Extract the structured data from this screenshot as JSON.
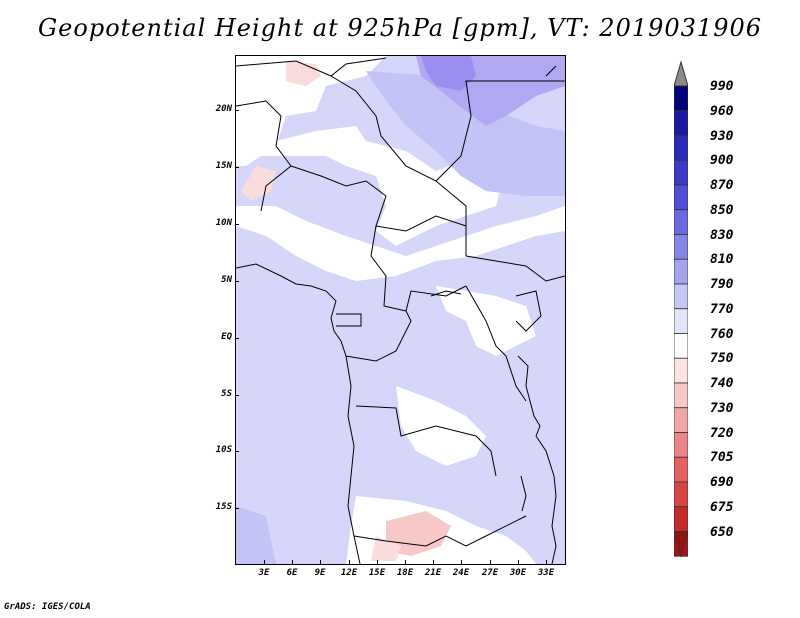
{
  "title": "Geopotential Height at 925hPa [gpm], VT: 2019031906",
  "footer": "GrADS: IGES/COLA",
  "map": {
    "lat_labels": [
      "20N",
      "15N",
      "10N",
      "5N",
      "EQ",
      "5S",
      "10S",
      "15S"
    ],
    "lon_labels": [
      "3E",
      "6E",
      "9E",
      "12E",
      "15E",
      "18E",
      "21E",
      "24E",
      "27E",
      "30E",
      "33E"
    ],
    "colors": {
      "background_770_790": "#d6d6fa",
      "white_760_770": "#ffffff",
      "light_pink_750_760": "#fadcdc",
      "pink_740_750": "#f7c8c8",
      "lavender_790_810": "#c3c3f5",
      "purple_810_830": "#b0a8f2",
      "purple_830_850": "#9a8ff0",
      "coast_borders": "#000000"
    }
  },
  "colorbar": {
    "levels": [
      "990",
      "960",
      "930",
      "900",
      "870",
      "850",
      "830",
      "810",
      "790",
      "770",
      "760",
      "750",
      "740",
      "730",
      "720",
      "705",
      "690",
      "675",
      "650"
    ],
    "colors": [
      "#00007a",
      "#1a1a9e",
      "#2a2ab8",
      "#3b3bc8",
      "#5050d4",
      "#6a6ade",
      "#8585e6",
      "#a5a5ee",
      "#c7c7f6",
      "#e4e4fb",
      "#ffffff",
      "#fde4e4",
      "#f8c7c7",
      "#f1a5a5",
      "#eb8484",
      "#e36363",
      "#d64646",
      "#c42a2a",
      "#a81414"
    ],
    "top_arrow_color": "#8a8a8a",
    "bottom_arrow_color": "#9b0f0f"
  }
}
